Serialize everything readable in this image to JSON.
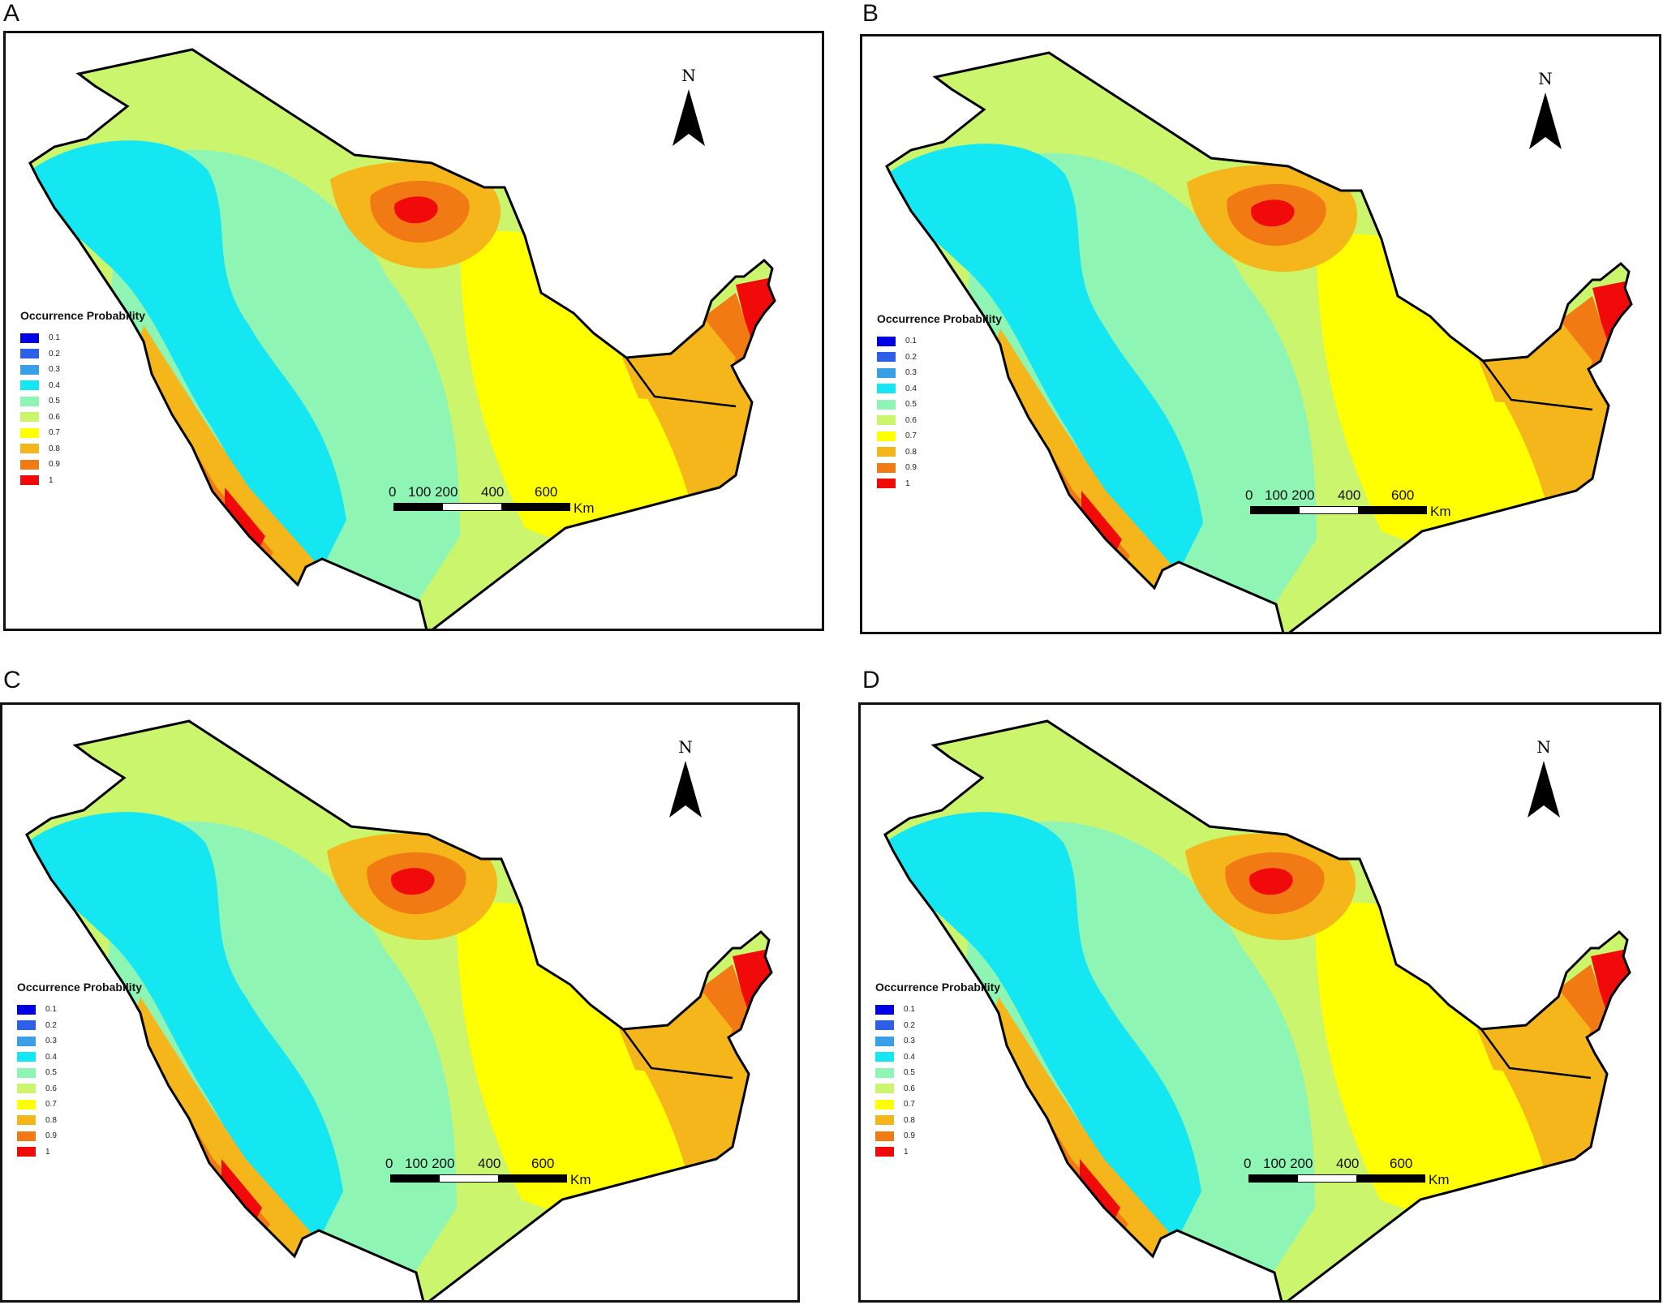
{
  "panels": [
    {
      "id": "A",
      "label": "A"
    },
    {
      "id": "B",
      "label": "B"
    },
    {
      "id": "C",
      "label": "C"
    },
    {
      "id": "D",
      "label": "D"
    }
  ],
  "north_arrow": {
    "label": "N"
  },
  "legend": {
    "title": "Occurrence Probability",
    "entries": [
      {
        "value": "0.1",
        "color": "#0000e6"
      },
      {
        "value": "0.2",
        "color": "#2e5fe8"
      },
      {
        "value": "0.3",
        "color": "#39a0e8"
      },
      {
        "value": "0.4",
        "color": "#14e6f2"
      },
      {
        "value": "0.5",
        "color": "#8ff5b4"
      },
      {
        "value": "0.6",
        "color": "#ccf56e"
      },
      {
        "value": "0.7",
        "color": "#ffff00"
      },
      {
        "value": "0.8",
        "color": "#f5b61b"
      },
      {
        "value": "0.9",
        "color": "#f27a14"
      },
      {
        "value": "1",
        "color": "#f00a0a"
      }
    ]
  },
  "scale_bar": {
    "ticks": [
      "0",
      "100 200",
      "400",
      "600"
    ],
    "unit": "Km"
  }
}
